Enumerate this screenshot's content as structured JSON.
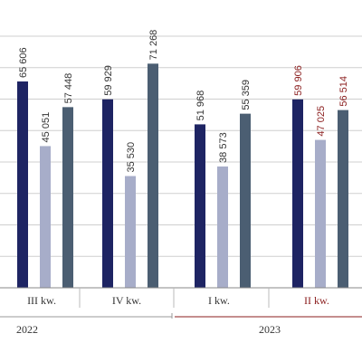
{
  "chart_data": {
    "type": "bar",
    "categories": [
      "III kw.",
      "IV kw.",
      "I kw.",
      "II kw."
    ],
    "year_groups": [
      {
        "label": "2022"
      },
      {
        "label": "2023"
      }
    ],
    "series": [
      {
        "values": [
          65606,
          59929,
          51968,
          59906
        ]
      },
      {
        "values": [
          45051,
          35530,
          38573,
          47025
        ]
      },
      {
        "values": [
          57448,
          71268,
          55359,
          56514
        ]
      }
    ],
    "data_labels": [
      [
        "65 606",
        "59 929",
        "51 968",
        "59 906"
      ],
      [
        "45 051",
        "35 530",
        "38 573",
        "47 025"
      ],
      [
        "57 448",
        "71 268",
        "55 359",
        "56 514"
      ]
    ],
    "ylim": [
      0,
      80000
    ],
    "grid": true,
    "legend": "none"
  },
  "colors": {
    "series": [
      "#1e2463",
      "#a7adc9",
      "#4b5e72"
    ],
    "highlight_label": "#8b1e1e",
    "normal_label": "#333333",
    "grid": "#cfcfcf",
    "axis": "#888888",
    "year_2023_line": "#8b1e1e"
  }
}
